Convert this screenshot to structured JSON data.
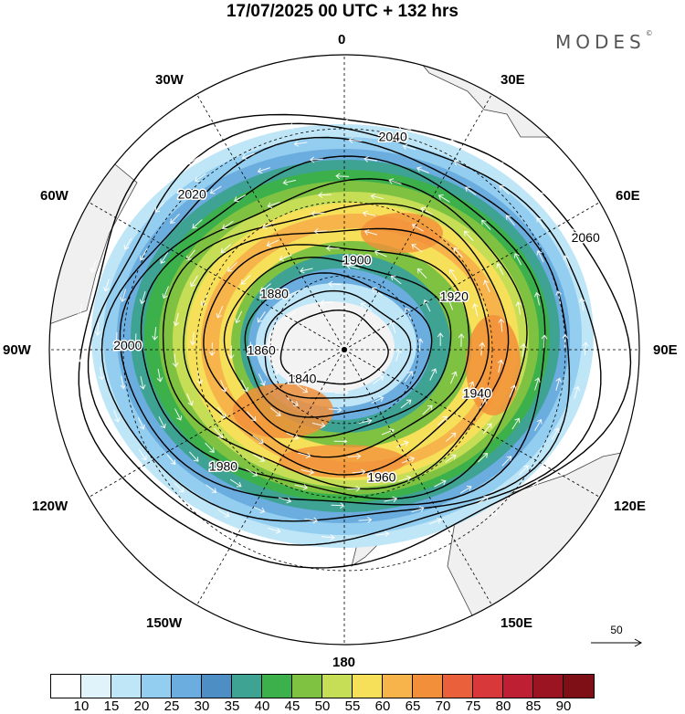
{
  "title": "17/07/2025  00 UTC  + 132 hrs",
  "brand": "MODES",
  "brand_mark": "©",
  "longitude_labels": [
    "0",
    "30E",
    "60E",
    "90E",
    "120E",
    "150E",
    "180",
    "150W",
    "120W",
    "90W",
    "60W",
    "30W"
  ],
  "contours": [
    {
      "label": "1840"
    },
    {
      "label": "1860"
    },
    {
      "label": "1880"
    },
    {
      "label": "1900"
    },
    {
      "label": "1920"
    },
    {
      "label": "1940"
    },
    {
      "label": "1960"
    },
    {
      "label": "1980"
    },
    {
      "label": "2000"
    },
    {
      "label": "2020"
    },
    {
      "label": "2040"
    },
    {
      "label": "2060"
    }
  ],
  "colorbar": {
    "colors": [
      "#ffffff",
      "#e0f3fb",
      "#bfe6f7",
      "#93cdef",
      "#6badde",
      "#4d8fc4",
      "#3fa394",
      "#3cb04a",
      "#7fc242",
      "#c5de56",
      "#f6e05a",
      "#f6b44b",
      "#f28f3a",
      "#e9603a",
      "#d9383a",
      "#bf1f33",
      "#9b1422",
      "#7e0f16"
    ],
    "ticks": [
      "10",
      "15",
      "20",
      "25",
      "30",
      "35",
      "40",
      "45",
      "50",
      "55",
      "60",
      "65",
      "70",
      "75",
      "80",
      "85",
      "90"
    ]
  },
  "reference_vector": {
    "label": "50"
  }
}
